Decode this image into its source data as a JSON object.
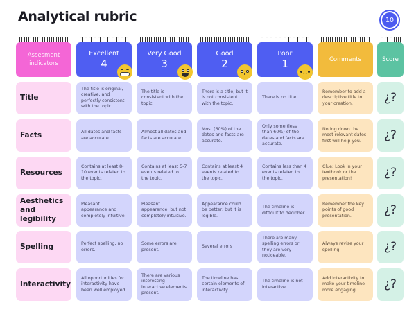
{
  "title": "Analytical rubric",
  "page_badge": "10",
  "headers": {
    "indicators": "Assesment indicators",
    "excellent": {
      "label": "Excellent",
      "score": "4",
      "emoji": "grinning-face-icon"
    },
    "very_good": {
      "label": "Very Good",
      "score": "3",
      "emoji": "smiling-face-icon"
    },
    "good": {
      "label": "Good",
      "score": "2",
      "emoji": "neutral-face-icon"
    },
    "poor": {
      "label": "Poor",
      "score": "1",
      "emoji": "sad-face-icon"
    },
    "comments": "Comments",
    "score": "Score"
  },
  "colors": {
    "pink": "#f466d6",
    "blue": "#4f5ef2",
    "orange": "#f2bb3c",
    "green": "#5cc3a2",
    "pink_light": "#fdd8f3",
    "blue_light": "#d3d5fc",
    "orange_light": "#fde5bf",
    "green_light": "#d4f1e6"
  },
  "rows": [
    {
      "indicator": "Title",
      "excellent": "The title is original, creative, and perfectly consistent with the topic.",
      "very_good": "The title is consistent with the topic.",
      "good": "There is a title, but it is not consistent with the topic.",
      "poor": "There is no title.",
      "comment": "Remember to add a descriptive title to your creation.",
      "score": "¿?"
    },
    {
      "indicator": "Facts",
      "excellent": "All dates and facts are accurate.",
      "very_good": "Almost all dates and facts are accurate.",
      "good": "Most (60%) of the dates and facts are accurate.",
      "poor": "Only some (less than 60%) of the dates and facts are accurate.",
      "comment": "Noting down the most relevant dates first will help you.",
      "score": "¿?"
    },
    {
      "indicator": "Resources",
      "excellent": "Contains at least 8-10 events related to the topic.",
      "very_good": "Contains at least 5-7 events related to the topic.",
      "good": "Contains at least 4 events related to the topic.",
      "poor": "Contains less than 4 events related to the topic.",
      "comment": "Clue: Look in your textbook or the presentation!",
      "score": "¿?"
    },
    {
      "indicator": "Aesthetics and legibility",
      "excellent": "Pleasant appearance and completely intuitive.",
      "very_good": "Pleasant appearance, but not completely intuitive.",
      "good": "Appearance could be better, but it is legible.",
      "poor": "The timeline is difficult to decipher.",
      "comment": "Remember the key points of good presentation.",
      "score": "¿?"
    },
    {
      "indicator": "Spelling",
      "excellent": "Perfect spelling, no errors.",
      "very_good": "Some errors are present.",
      "good": "Several errors",
      "poor": "There are many spelling errors or they are very noticeable.",
      "comment": "Always revise your spelling!",
      "score": "¿?"
    },
    {
      "indicator": "Interactivity",
      "excellent": "All opportunities for interactivity have been well employed.",
      "very_good": "There are various interesting interactive elements present.",
      "good": "The timeline has certain elements of interactivity.",
      "poor": "The timeline is not interactive.",
      "comment": "Add interactivity to make your timeline more engaging.",
      "score": "¿?"
    }
  ]
}
